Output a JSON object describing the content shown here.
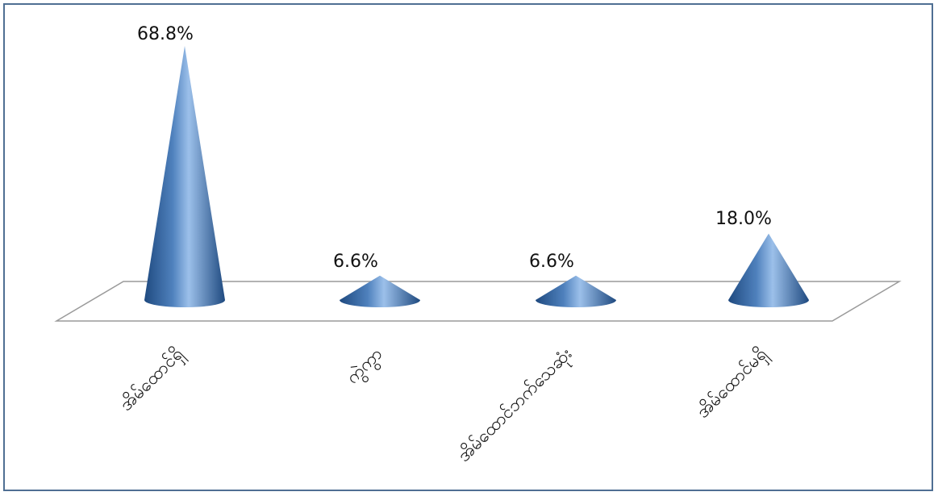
{
  "chart_data": {
    "type": "bar",
    "style": "3d-cone",
    "categories": [
      "အိမ်ထောင်ရှိ",
      "ကွဲကွာ",
      "အိမ်ထောင်ဘက်သေဆုံး",
      "အိမ်ထောင်မရှိ"
    ],
    "values": [
      68.8,
      6.6,
      6.6,
      18.0
    ],
    "data_labels": [
      "68.8%",
      "6.6%",
      "6.6%",
      "18.0%"
    ],
    "title": "",
    "xlabel": "",
    "ylabel": "",
    "ylim": [
      0,
      70
    ],
    "grid": false,
    "legend": "none",
    "colors": {
      "cone": "#4f81bd",
      "cone_dark": "#1f4a80",
      "cone_light": "#9cc0ea",
      "floor": "#9a9a9a",
      "frame": "#4f6f93"
    }
  }
}
